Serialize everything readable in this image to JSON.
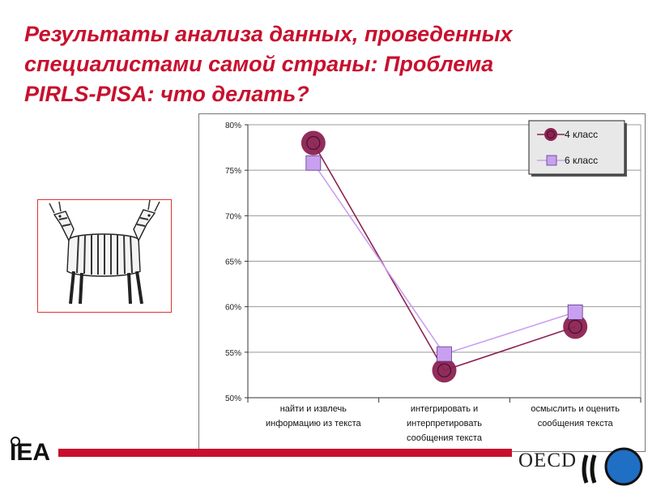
{
  "slide": {
    "title_lines": [
      "Результаты анализа данных, проведенных",
      "специалистами самой страны: Проблема",
      "PIRLS-PISA: что делать?"
    ],
    "iea_logo_text": "IEA",
    "oecd_logo_text": "OECD",
    "accent_color": "#c8102e"
  },
  "chart_data": {
    "type": "line",
    "title": "",
    "ylabel": "",
    "ylim": [
      50,
      80
    ],
    "y_ticks": [
      "50%",
      "55%",
      "60%",
      "65%",
      "70%",
      "75%",
      "80%"
    ],
    "grid": true,
    "legend_position": "top-right",
    "categories": [
      [
        "найти и извлечь",
        "информацию из текста"
      ],
      [
        "интегрировать и",
        "интерпретировать",
        "сообщения текста"
      ],
      [
        "осмыслить и оценить",
        "сообщения текста"
      ]
    ],
    "series": [
      {
        "name": "4 класс",
        "values": [
          78,
          53,
          57.8
        ],
        "color": "#8b2252",
        "marker": "circle"
      },
      {
        "name": "6 класс",
        "values": [
          75.8,
          54.8,
          59.4
        ],
        "color": "#c9a0f0",
        "marker": "square"
      }
    ]
  }
}
